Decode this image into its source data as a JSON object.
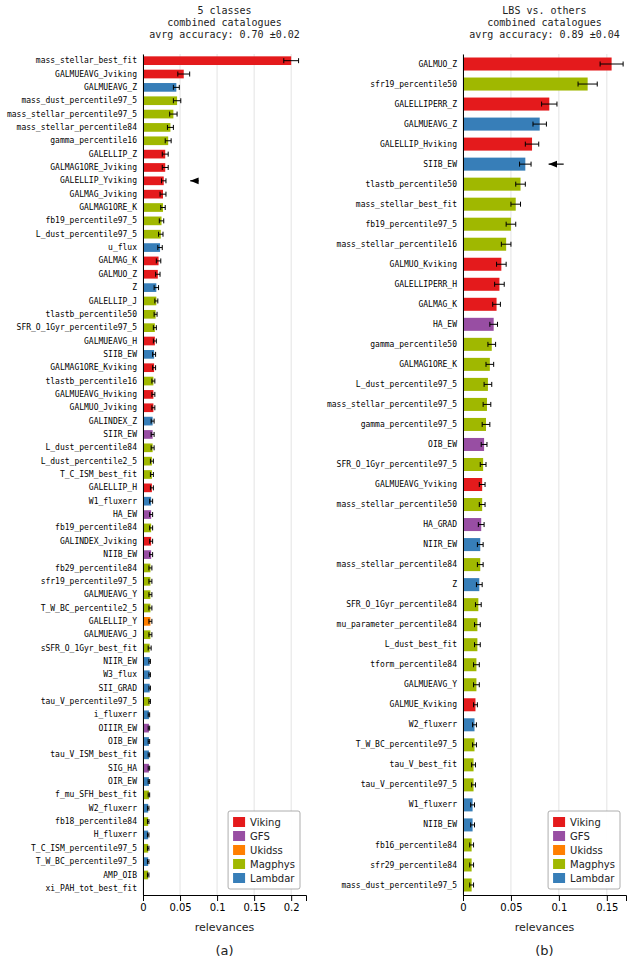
{
  "chart_data": [
    {
      "type": "bar",
      "orientation": "horizontal",
      "stacked": true,
      "title": "5 classes\ncombined catalogues\navrg accuracy: 0.70 ±0.02",
      "xlabel": "relevances",
      "caption": "(a)",
      "categories": [
        "mass_stellar_best_fit",
        "GALMUEAVG_Jviking",
        "GALMUEAVG_Z",
        "mass_dust_percentile97_5",
        "mass_stellar_percentile97_5",
        "mass_stellar_percentile84",
        "gamma_percentile16",
        "GALELLIP_Z",
        "GALMAG1ORE_Jviking",
        "GALELLIP_Yviking",
        "GALMAG_Jviking",
        "GALMAG1ORE_K",
        "fb19_percentile97_5",
        "L_dust_percentile97_5",
        "u_flux",
        "GALMAG_K",
        "GALMUO_Z",
        "Z",
        "GALELLIP_J",
        "tlastb_percentile50",
        "SFR_O_1Gyr_percentile97_5",
        "GALMUEAVG_H",
        "SIIB_EW",
        "GALMAG1ORE_Kviking",
        "tlastb_percentile16",
        "GALMUEAVG_Hviking",
        "GALMUO_Jviking",
        "GALINDEX_Z",
        "SIIR_EW",
        "L_dust_percentile84",
        "L_dust_percentile2_5",
        "T_C_ISM_best_fit",
        "GALELLIP_H",
        "W1_fluxerr",
        "HA_EW",
        "fb19_percentile84",
        "GALINDEX_Jviking",
        "NIIB_EW",
        "fb29_percentile84",
        "sfr19_percentile97_5",
        "GALMUEAVG_Y",
        "T_W_BC_percentile2_5",
        "GALELLIP_Y",
        "GALMUEAVG_J",
        "sSFR_O_1Gyr_best_fit",
        "NIIR_EW",
        "W3_flux",
        "SII_GRAD",
        "tau_V_percentile97_5",
        "i_fluxerr",
        "OIIIR_EW",
        "OIB_EW",
        "tau_V_ISM_best_fit",
        "SIG_HA",
        "OIR_EW",
        "f_mu_SFH_best_fit",
        "W2_fluxerr",
        "fb18_percentile84",
        "H_fluxerr",
        "T_C_ISM_percentile97_5",
        "T_W_BC_percentile97_5",
        "AMP_OIB",
        "xi_PAH_tot_best_fit"
      ],
      "series": [
        {
          "name": "Viking",
          "color": "#e41a1c",
          "values": [
            0.2,
            0.055,
            0,
            0,
            0,
            0,
            0,
            0.03,
            0.03,
            0.028,
            0.027,
            0,
            0,
            0,
            0,
            0.021,
            0.02,
            0,
            0,
            0,
            0,
            0.016,
            0,
            0.015,
            0,
            0.014,
            0.014,
            0,
            0,
            0,
            0,
            0,
            0.012,
            0,
            0,
            0,
            0.011,
            0,
            0,
            0,
            0,
            0,
            0,
            0,
            0,
            0,
            0,
            0,
            0,
            0,
            0,
            0,
            0,
            0,
            0,
            0,
            0,
            0,
            0,
            0,
            0,
            0,
            null
          ]
        },
        {
          "name": "GFS",
          "color": "#984ea3",
          "values": [
            0,
            0,
            0,
            0,
            0,
            0,
            0,
            0,
            0,
            0,
            0,
            0,
            0,
            0,
            0,
            0,
            0,
            0,
            0,
            0,
            0,
            0,
            0,
            0,
            0,
            0,
            0,
            0,
            0.013,
            0,
            0,
            0,
            0,
            0,
            0.011,
            0,
            0,
            0.011,
            0,
            0,
            0,
            0,
            0,
            0,
            0,
            0,
            0,
            0,
            0,
            0,
            0.008,
            0,
            0,
            0.008,
            0,
            0,
            0,
            0,
            0,
            0,
            0,
            0,
            null
          ]
        },
        {
          "name": "Ukidss",
          "color": "#ff7f00",
          "values": [
            0,
            0,
            0,
            0,
            0,
            0,
            0,
            0,
            0,
            0,
            0,
            0,
            0,
            0,
            0,
            0,
            0,
            0,
            0,
            0,
            0,
            0,
            0,
            0,
            0,
            0,
            0,
            0,
            0,
            0,
            0,
            0,
            0,
            0,
            0,
            0,
            0,
            0,
            0,
            0,
            0,
            0,
            0.01,
            0,
            0,
            0,
            0,
            0,
            0,
            0,
            0,
            0,
            0,
            0,
            0,
            0,
            0,
            0,
            0,
            0,
            0,
            0,
            null
          ]
        },
        {
          "name": "Magphys",
          "color": "#a0b800",
          "values": [
            0,
            0,
            0,
            0.046,
            0.041,
            0.037,
            0.034,
            0,
            0,
            0,
            0,
            0.027,
            0.025,
            0.024,
            0,
            0,
            0,
            0,
            0.018,
            0.017,
            0.016,
            0,
            0,
            0,
            0.014,
            0,
            0,
            0,
            0,
            0.013,
            0.012,
            0.012,
            0,
            0,
            0,
            0.011,
            0,
            0,
            0.01,
            0.01,
            0.01,
            0.01,
            0,
            0.01,
            0.009,
            0,
            0,
            0,
            0.009,
            0,
            0,
            0,
            0,
            0,
            0,
            0.008,
            0,
            0.007,
            0,
            0.007,
            0,
            0.007,
            null
          ]
        },
        {
          "name": "Lambdar",
          "color": "#377eb8",
          "values": [
            0,
            0,
            0.045,
            0,
            0,
            0,
            0,
            0,
            0,
            0,
            0,
            0,
            0,
            0,
            0.023,
            0,
            0,
            0.018,
            0,
            0,
            0,
            0,
            0.015,
            0,
            0,
            0,
            0,
            0.013,
            0,
            0,
            0,
            0,
            0,
            0.011,
            0,
            0,
            0,
            0,
            0,
            0,
            0,
            0,
            0,
            0,
            0,
            0.009,
            0.009,
            0.009,
            0,
            0.008,
            0,
            0.008,
            0.008,
            0,
            0.008,
            0,
            0.007,
            0,
            0.007,
            0,
            0.007,
            0,
            null
          ]
        }
      ],
      "errors": [
        0.01,
        0.008,
        0.004,
        0.005,
        0.005,
        0.004,
        0.004,
        0.004,
        0.004,
        0.003,
        0.004,
        0.003,
        0.003,
        0.003,
        0.003,
        0.003,
        0.003,
        0.003,
        0.002,
        0.002,
        0.002,
        0.002,
        0.002,
        0.002,
        0.002,
        0.002,
        0.002,
        0.002,
        0.002,
        0.002,
        0.002,
        0.002,
        0.002,
        0.002,
        0.002,
        0.002,
        0.002,
        0.002,
        0.002,
        0.002,
        0.002,
        0.002,
        0.002,
        0.002,
        0.002,
        0.001,
        0.001,
        0.001,
        0.001,
        0.001,
        0.001,
        0.001,
        0.001,
        0.001,
        0.001,
        0.001,
        0.001,
        0.001,
        0.001,
        0.001,
        0.001,
        0.001,
        null
      ],
      "xlim": [
        0,
        0.22
      ],
      "xticks": [
        0,
        0.05,
        0.1,
        0.15,
        0.2
      ],
      "grid": true,
      "legend": "lower right",
      "arrows": [
        {
          "category": "GALELLIP_Yviking",
          "from": 0.075,
          "to": 0.06375
        }
      ]
    },
    {
      "type": "bar",
      "orientation": "horizontal",
      "stacked": true,
      "title": "LBS vs. others\ncombined catalogues\navrg accuracy: 0.89 ±0.04",
      "xlabel": "relevances",
      "caption": "(b)",
      "categories": [
        "GALMUO_Z",
        "sfr19_percentile50",
        "GALELLIPERR_Z",
        "GALMUEAVG_Z",
        "GALELLIP_Hviking",
        "SIIB_EW",
        "tlastb_percentile50",
        "mass_stellar_best_fit",
        "fb19_percentile97_5",
        "mass_stellar_percentile16",
        "GALMUO_Kviking",
        "GALELLIPERR_H",
        "GALMAG_K",
        "HA_EW",
        "gamma_percentile50",
        "GALMAG1ORE_K",
        "L_dust_percentile97_5",
        "mass_stellar_percentile97_5",
        "gamma_percentile97_5",
        "OIB_EW",
        "SFR_O_1Gyr_percentile97_5",
        "GALMUEAVG_Yviking",
        "mass_stellar_percentile50",
        "HA_GRAD",
        "NIIR_EW",
        "mass_stellar_percentile84",
        "Z",
        "SFR_O_1Gyr_percentile84",
        "mu_parameter_percentile84",
        "L_dust_best_fit",
        "tform_percentile84",
        "GALMUEAVG_Y",
        "GALMUE_Kviking",
        "W2_fluxerr",
        "T_W_BC_percentile97_5",
        "tau_V_best_fit",
        "tau_V_percentile97_5",
        "W1_fluxerr",
        "NIIB_EW",
        "fb16_percentile84",
        "sfr29_percentile84",
        "mass_dust_percentile97_5"
      ],
      "series": [
        {
          "name": "Viking",
          "color": "#e41a1c",
          "values": [
            0.155,
            0,
            0.09,
            0,
            0.072,
            0,
            0,
            0,
            0,
            0,
            0.04,
            0.038,
            0.035,
            0,
            0,
            0,
            0,
            0,
            0,
            0,
            0,
            0.02,
            0,
            0,
            0,
            0,
            0,
            0,
            0,
            0,
            0,
            0,
            0.013,
            0,
            0,
            0,
            0,
            0,
            0,
            0,
            0,
            0
          ]
        },
        {
          "name": "GFS",
          "color": "#984ea3",
          "values": [
            0,
            0,
            0,
            0,
            0,
            0,
            0,
            0,
            0,
            0,
            0,
            0,
            0,
            0.032,
            0,
            0,
            0,
            0,
            0,
            0.022,
            0,
            0,
            0,
            0.019,
            0,
            0,
            0,
            0,
            0,
            0,
            0,
            0,
            0,
            0,
            0,
            0,
            0,
            0,
            0,
            0,
            0,
            0
          ]
        },
        {
          "name": "Ukidss",
          "color": "#ff7f00",
          "values": [
            0,
            0,
            0,
            0,
            0,
            0,
            0,
            0,
            0,
            0,
            0,
            0,
            0,
            0,
            0,
            0,
            0,
            0,
            0,
            0,
            0,
            0,
            0,
            0,
            0,
            0,
            0,
            0,
            0,
            0,
            0,
            0,
            0,
            0,
            0,
            0,
            0,
            0,
            0,
            0,
            0,
            0
          ]
        },
        {
          "name": "Magphys",
          "color": "#a0b800",
          "values": [
            0,
            0.13,
            0,
            0,
            0,
            0,
            0.06,
            0.055,
            0.05,
            0.045,
            0,
            0,
            0,
            0,
            0.03,
            0.028,
            0.026,
            0.025,
            0.024,
            0,
            0.021,
            0,
            0.02,
            0,
            0,
            0.018,
            0,
            0.016,
            0.015,
            0.015,
            0.014,
            0.014,
            0,
            0,
            0.012,
            0.011,
            0.011,
            0,
            0,
            0.009,
            0.009,
            0.009
          ]
        },
        {
          "name": "Lambdar",
          "color": "#377eb8",
          "values": [
            0,
            0,
            0,
            0.08,
            0,
            0.065,
            0,
            0,
            0,
            0,
            0,
            0,
            0,
            0,
            0,
            0,
            0,
            0,
            0,
            0,
            0,
            0,
            0,
            0,
            0.018,
            0,
            0.017,
            0,
            0,
            0,
            0,
            0,
            0,
            0.012,
            0,
            0,
            0,
            0.01,
            0.01,
            0,
            0,
            0
          ]
        }
      ],
      "errors": [
        0.012,
        0.01,
        0.008,
        0.007,
        0.007,
        0.006,
        0.005,
        0.005,
        0.005,
        0.005,
        0.005,
        0.005,
        0.004,
        0.004,
        0.004,
        0.004,
        0.004,
        0.004,
        0.004,
        0.003,
        0.003,
        0.003,
        0.003,
        0.003,
        0.003,
        0.003,
        0.003,
        0.003,
        0.003,
        0.003,
        0.003,
        0.003,
        0.002,
        0.002,
        0.002,
        0.002,
        0.002,
        0.002,
        0.002,
        0.002,
        0.002,
        0.002
      ],
      "xlim": [
        0,
        0.17
      ],
      "xticks": [
        0,
        0.05,
        0.1,
        0.15
      ],
      "grid": true,
      "legend": "lower right",
      "arrows": [
        {
          "category": "SIIB_EW",
          "from": 0.105,
          "to": 0.08925
        }
      ]
    }
  ]
}
